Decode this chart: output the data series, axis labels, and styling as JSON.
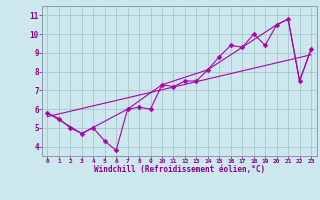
{
  "xlabel": "Windchill (Refroidissement éolien,°C)",
  "bg_color": "#cce8ee",
  "line_color": "#aa00aa",
  "grid_color": "#aacccc",
  "axis_label_color": "#880088",
  "tick_label_color": "#880088",
  "spine_color": "#8899aa",
  "xlim": [
    -0.5,
    23.5
  ],
  "ylim": [
    3.5,
    11.5
  ],
  "xticks": [
    0,
    1,
    2,
    3,
    4,
    5,
    6,
    7,
    8,
    9,
    10,
    11,
    12,
    13,
    14,
    15,
    16,
    17,
    18,
    19,
    20,
    21,
    22,
    23
  ],
  "yticks": [
    4,
    5,
    6,
    7,
    8,
    9,
    10,
    11
  ],
  "line1_x": [
    0,
    1,
    2,
    3,
    4,
    5,
    6,
    7,
    8,
    9,
    10,
    11,
    12,
    13,
    14,
    15,
    16,
    17,
    18,
    19,
    20,
    21,
    22,
    23
  ],
  "line1_y": [
    5.8,
    5.5,
    5.0,
    4.7,
    5.0,
    4.3,
    3.8,
    6.0,
    6.1,
    6.0,
    7.3,
    7.2,
    7.5,
    7.5,
    8.1,
    8.8,
    9.4,
    9.3,
    10.0,
    9.4,
    10.5,
    10.8,
    7.5,
    9.2
  ],
  "line2_x": [
    0,
    3,
    7,
    10,
    14,
    17,
    20,
    21,
    22,
    23
  ],
  "line2_y": [
    5.8,
    4.7,
    6.0,
    7.3,
    8.1,
    9.3,
    10.5,
    10.8,
    7.5,
    9.2
  ],
  "line3_x": [
    0,
    23
  ],
  "line3_y": [
    5.6,
    8.9
  ]
}
